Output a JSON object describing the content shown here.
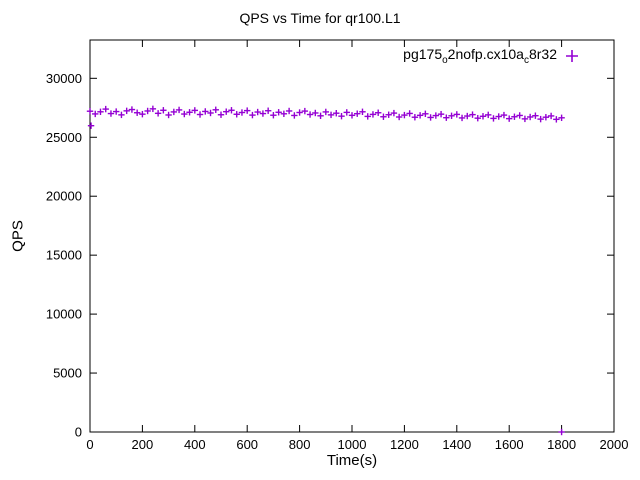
{
  "legend": {
    "prefix": "pg175",
    "sub1": "o",
    "mid": "2nofp.cx10a",
    "sub2": "c",
    "suffix": "8r32"
  },
  "chart_data": {
    "type": "scatter",
    "title": "QPS vs Time for qr100.L1",
    "xlabel": "Time(s)",
    "ylabel": "QPS",
    "xlim": [
      0,
      2000
    ],
    "ylim": [
      0,
      33250
    ],
    "xticks": [
      0,
      200,
      400,
      600,
      800,
      1000,
      1200,
      1400,
      1600,
      1800,
      2000
    ],
    "yticks": [
      0,
      5000,
      10000,
      15000,
      20000,
      25000,
      30000
    ],
    "grid": false,
    "legend_position": "top-right-inside",
    "marker": "plus",
    "color": "#9400d3",
    "series": [
      {
        "name": "pg175_o2nofp.cx10a_c8r32",
        "points": [
          [
            4,
            25980
          ],
          [
            0,
            27210
          ],
          [
            20,
            26980
          ],
          [
            40,
            27160
          ],
          [
            60,
            27390
          ],
          [
            80,
            27010
          ],
          [
            100,
            27180
          ],
          [
            120,
            26900
          ],
          [
            140,
            27240
          ],
          [
            160,
            27350
          ],
          [
            180,
            27080
          ],
          [
            200,
            26960
          ],
          [
            220,
            27230
          ],
          [
            240,
            27410
          ],
          [
            260,
            27030
          ],
          [
            280,
            27290
          ],
          [
            300,
            26890
          ],
          [
            320,
            27150
          ],
          [
            340,
            27320
          ],
          [
            360,
            26970
          ],
          [
            380,
            27120
          ],
          [
            400,
            27280
          ],
          [
            420,
            26930
          ],
          [
            440,
            27190
          ],
          [
            460,
            27060
          ],
          [
            480,
            27330
          ],
          [
            500,
            26910
          ],
          [
            520,
            27170
          ],
          [
            540,
            27290
          ],
          [
            560,
            26950
          ],
          [
            580,
            27100
          ],
          [
            600,
            27260
          ],
          [
            620,
            26880
          ],
          [
            640,
            27140
          ],
          [
            660,
            27010
          ],
          [
            680,
            27250
          ],
          [
            700,
            26870
          ],
          [
            720,
            27120
          ],
          [
            740,
            26990
          ],
          [
            760,
            27230
          ],
          [
            780,
            26850
          ],
          [
            800,
            27100
          ],
          [
            820,
            27220
          ],
          [
            840,
            26930
          ],
          [
            860,
            27060
          ],
          [
            880,
            26820
          ],
          [
            900,
            27150
          ],
          [
            920,
            26900
          ],
          [
            940,
            27040
          ],
          [
            960,
            26790
          ],
          [
            980,
            27110
          ],
          [
            1000,
            26860
          ],
          [
            1020,
            27000
          ],
          [
            1040,
            27160
          ],
          [
            1060,
            26770
          ],
          [
            1080,
            26940
          ],
          [
            1100,
            27080
          ],
          [
            1120,
            26740
          ],
          [
            1140,
            26910
          ],
          [
            1160,
            27050
          ],
          [
            1180,
            26720
          ],
          [
            1200,
            26880
          ],
          [
            1220,
            27020
          ],
          [
            1240,
            26700
          ],
          [
            1260,
            26860
          ],
          [
            1280,
            26990
          ],
          [
            1300,
            26680
          ],
          [
            1320,
            26840
          ],
          [
            1340,
            26960
          ],
          [
            1360,
            26660
          ],
          [
            1380,
            26820
          ],
          [
            1400,
            26940
          ],
          [
            1420,
            26640
          ],
          [
            1440,
            26800
          ],
          [
            1460,
            26920
          ],
          [
            1480,
            26620
          ],
          [
            1500,
            26780
          ],
          [
            1520,
            26900
          ],
          [
            1540,
            26600
          ],
          [
            1560,
            26760
          ],
          [
            1580,
            26880
          ],
          [
            1600,
            26580
          ],
          [
            1620,
            26740
          ],
          [
            1640,
            26850
          ],
          [
            1660,
            26560
          ],
          [
            1680,
            26720
          ],
          [
            1700,
            26830
          ],
          [
            1720,
            26540
          ],
          [
            1740,
            26700
          ],
          [
            1760,
            26810
          ],
          [
            1780,
            26520
          ],
          [
            1800,
            26650
          ],
          [
            1800,
            0
          ]
        ]
      }
    ]
  }
}
